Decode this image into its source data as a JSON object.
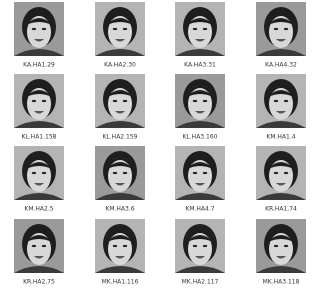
{
  "images": [
    {
      "label": "KA.HA1.29"
    },
    {
      "label": "KA.HA2.30"
    },
    {
      "label": "KA.HA3.31"
    },
    {
      "label": "KA.HA4.32"
    },
    {
      "label": "KL.HA1.158"
    },
    {
      "label": "KL.HA2.159"
    },
    {
      "label": "KL.HA3.160"
    },
    {
      "label": "KM.HA1.4"
    },
    {
      "label": "KM.HA2.5"
    },
    {
      "label": "KM.HA3.6"
    },
    {
      "label": "KM.HA4.7"
    },
    {
      "label": "KR.HA1.74"
    },
    {
      "label": "KR.HA2.75"
    },
    {
      "label": "MK.HA1.116"
    },
    {
      "label": "MK.HA2.117"
    },
    {
      "label": "MK.HA3.118"
    }
  ]
}
